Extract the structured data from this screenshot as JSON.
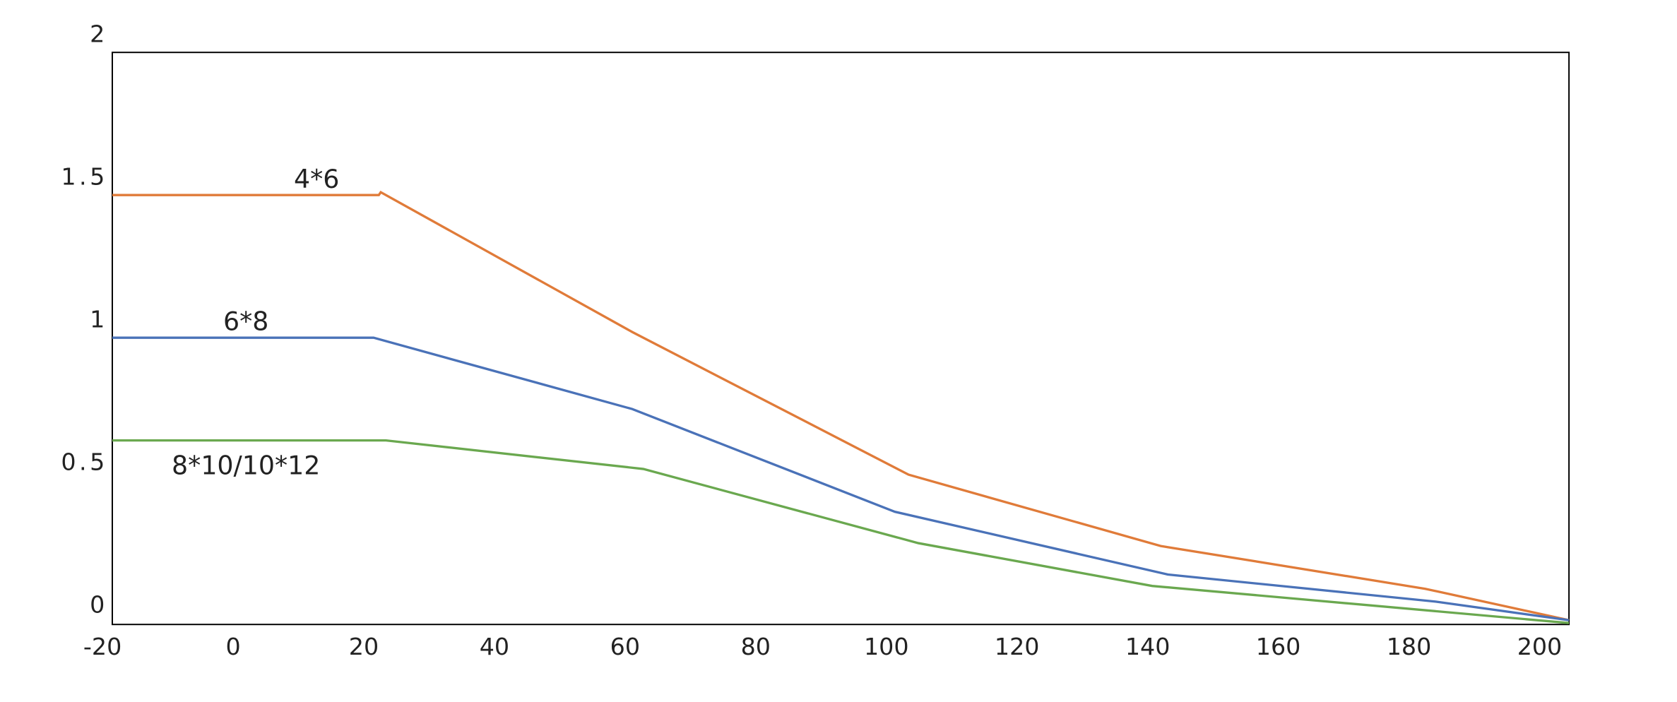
{
  "chart_data": {
    "type": "line",
    "xlim": [
      -18.5,
      204.5
    ],
    "ylim": [
      -0.065,
      1.94
    ],
    "xticks": [
      -20,
      0,
      20,
      40,
      60,
      80,
      100,
      120,
      140,
      160,
      180,
      200
    ],
    "yticks": [
      0,
      0.5,
      1,
      1.5,
      2
    ],
    "series": [
      {
        "name": "4*6",
        "color": "#e07b39",
        "label_color": "#c0621e",
        "x": [
          -18.5,
          22.3,
          22.6,
          61.1,
          103.4,
          142,
          182.5,
          204.5
        ],
        "values": [
          1.44,
          1.44,
          1.45,
          0.96,
          0.46,
          0.21,
          0.06,
          -0.05
        ]
      },
      {
        "name": "6*8",
        "color": "#4a72b8",
        "label_color": "#4a72b8",
        "x": [
          -18.5,
          21.5,
          61.1,
          101.3,
          143.1,
          184.1,
          204.5
        ],
        "values": [
          0.94,
          0.94,
          0.69,
          0.33,
          0.11,
          0.015,
          -0.05
        ]
      },
      {
        "name": "8*10/10*12",
        "color": "#6aa84f",
        "label_color": "#6aa84f",
        "x": [
          -18.5,
          23.4,
          62.8,
          104.9,
          140.7,
          204.5
        ],
        "values": [
          0.58,
          0.58,
          0.48,
          0.22,
          0.07,
          -0.06
        ]
      }
    ]
  }
}
